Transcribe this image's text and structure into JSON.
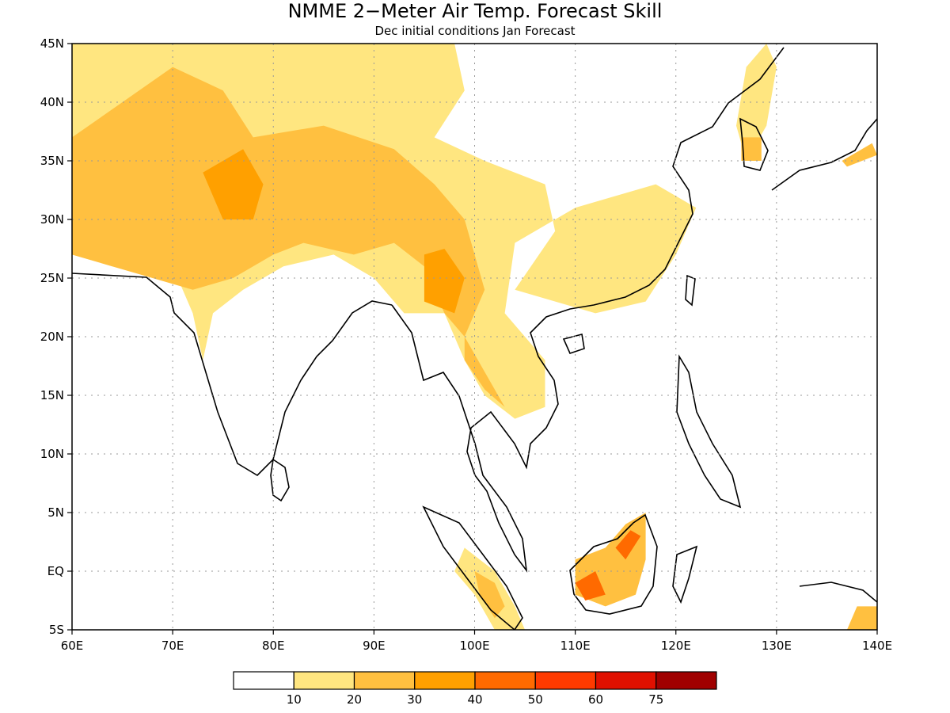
{
  "title": "NMME 2−Meter Air Temp. Forecast Skill",
  "subtitle": "Dec initial conditions  Jan Forecast",
  "x_axis": {
    "ticks": [
      {
        "lon": 60,
        "label": "60E"
      },
      {
        "lon": 70,
        "label": "70E"
      },
      {
        "lon": 80,
        "label": "80E"
      },
      {
        "lon": 90,
        "label": "90E"
      },
      {
        "lon": 100,
        "label": "100E"
      },
      {
        "lon": 110,
        "label": "110E"
      },
      {
        "lon": 120,
        "label": "120E"
      },
      {
        "lon": 130,
        "label": "130E"
      },
      {
        "lon": 140,
        "label": "140E"
      }
    ]
  },
  "y_axis": {
    "ticks": [
      {
        "lat": 45,
        "label": "45N"
      },
      {
        "lat": 40,
        "label": "40N"
      },
      {
        "lat": 35,
        "label": "35N"
      },
      {
        "lat": 30,
        "label": "30N"
      },
      {
        "lat": 25,
        "label": "25N"
      },
      {
        "lat": 20,
        "label": "20N"
      },
      {
        "lat": 15,
        "label": "15N"
      },
      {
        "lat": 10,
        "label": "10N"
      },
      {
        "lat": 5,
        "label": "5N"
      },
      {
        "lat": 0,
        "label": "EQ"
      },
      {
        "lat": -5,
        "label": "5S"
      }
    ]
  },
  "chart_data": {
    "type": "heatmap",
    "lon_range": [
      60,
      140
    ],
    "lat_range": [
      -5,
      45
    ],
    "grid": true,
    "colorbar": {
      "colors": [
        "#ffffff",
        "#ffe680",
        "#ffc040",
        "#ffa000",
        "#ff6a00",
        "#ff3a00",
        "#e01000",
        "#a00000"
      ],
      "labels": [
        "10",
        "20",
        "30",
        "40",
        "50",
        "60",
        "75"
      ]
    },
    "regions": [
      {
        "level": 1,
        "pts": [
          [
            60,
            45
          ],
          [
            98,
            45
          ],
          [
            99,
            41
          ],
          [
            96,
            37
          ],
          [
            101,
            35
          ],
          [
            107,
            33
          ],
          [
            108,
            29
          ],
          [
            104,
            24
          ],
          [
            112,
            22
          ],
          [
            117,
            23
          ],
          [
            120,
            27
          ],
          [
            122,
            31
          ],
          [
            118,
            33
          ],
          [
            110,
            31
          ],
          [
            104,
            28
          ],
          [
            103,
            22
          ],
          [
            107,
            18
          ],
          [
            107,
            14
          ],
          [
            104,
            13
          ],
          [
            101,
            15
          ],
          [
            99,
            18
          ],
          [
            97,
            22
          ],
          [
            93,
            22
          ],
          [
            90,
            25
          ],
          [
            86,
            27
          ],
          [
            81,
            26
          ],
          [
            77,
            24
          ],
          [
            74,
            22
          ],
          [
            73,
            18
          ],
          [
            72,
            22
          ],
          [
            70,
            26
          ],
          [
            64,
            26
          ],
          [
            60,
            27
          ]
        ]
      },
      {
        "level": 2,
        "pts": [
          [
            60,
            37
          ],
          [
            65,
            40
          ],
          [
            70,
            43
          ],
          [
            75,
            41
          ],
          [
            78,
            37
          ],
          [
            85,
            38
          ],
          [
            92,
            36
          ],
          [
            96,
            33
          ],
          [
            99,
            30
          ],
          [
            101,
            24
          ],
          [
            99,
            20
          ],
          [
            97,
            22
          ],
          [
            95,
            26
          ],
          [
            92,
            28
          ],
          [
            88,
            27
          ],
          [
            83,
            28
          ],
          [
            80,
            27
          ],
          [
            76,
            25
          ],
          [
            72,
            24
          ],
          [
            68,
            25
          ],
          [
            64,
            26
          ],
          [
            60,
            27
          ]
        ]
      },
      {
        "level": 2,
        "pts": [
          [
            99,
            20
          ],
          [
            101,
            17
          ],
          [
            103,
            14
          ],
          [
            101,
            15.5
          ],
          [
            99,
            18
          ]
        ]
      },
      {
        "level": 3,
        "pts": [
          [
            73,
            34
          ],
          [
            77,
            36
          ],
          [
            79,
            33
          ],
          [
            78,
            30
          ],
          [
            75,
            30
          ]
        ]
      },
      {
        "level": 3,
        "pts": [
          [
            95,
            27
          ],
          [
            97,
            27.5
          ],
          [
            99,
            25
          ],
          [
            98,
            22
          ],
          [
            95,
            23
          ]
        ]
      },
      {
        "level": 1,
        "pts": [
          [
            127,
            43
          ],
          [
            129,
            45
          ],
          [
            130,
            43
          ],
          [
            129,
            38
          ],
          [
            127,
            35
          ],
          [
            126,
            38
          ]
        ]
      },
      {
        "level": 2,
        "pts": [
          [
            126.5,
            37
          ],
          [
            128.5,
            37
          ],
          [
            128.5,
            35
          ],
          [
            126.5,
            35
          ]
        ]
      },
      {
        "level": 2,
        "pts": [
          [
            136.5,
            35
          ],
          [
            139.5,
            36.5
          ],
          [
            140,
            35.5
          ],
          [
            137,
            34.5
          ]
        ]
      },
      {
        "level": 1,
        "pts": [
          [
            99,
            2
          ],
          [
            102,
            0
          ],
          [
            104,
            -3
          ],
          [
            105,
            -5
          ],
          [
            102,
            -5
          ],
          [
            100,
            -2
          ],
          [
            98,
            0
          ]
        ]
      },
      {
        "level": 2,
        "pts": [
          [
            100,
            0
          ],
          [
            102,
            -1
          ],
          [
            103,
            -3
          ],
          [
            102,
            -4
          ],
          [
            100.5,
            -2
          ]
        ]
      },
      {
        "level": 2,
        "pts": [
          [
            110,
            1
          ],
          [
            113,
            2
          ],
          [
            115,
            4
          ],
          [
            117,
            5
          ],
          [
            117,
            1
          ],
          [
            116,
            -2
          ],
          [
            113,
            -3
          ],
          [
            110,
            -2
          ]
        ]
      },
      {
        "level": 4,
        "pts": [
          [
            110,
            -1
          ],
          [
            112,
            0
          ],
          [
            113,
            -2
          ],
          [
            111,
            -2.5
          ]
        ]
      },
      {
        "level": 4,
        "pts": [
          [
            114,
            2
          ],
          [
            115.5,
            3.5
          ],
          [
            116.5,
            3
          ],
          [
            115,
            1
          ]
        ]
      },
      {
        "level": 2,
        "pts": [
          [
            138,
            -3
          ],
          [
            140,
            -3
          ],
          [
            140,
            -5
          ],
          [
            137,
            -5
          ]
        ]
      }
    ]
  }
}
